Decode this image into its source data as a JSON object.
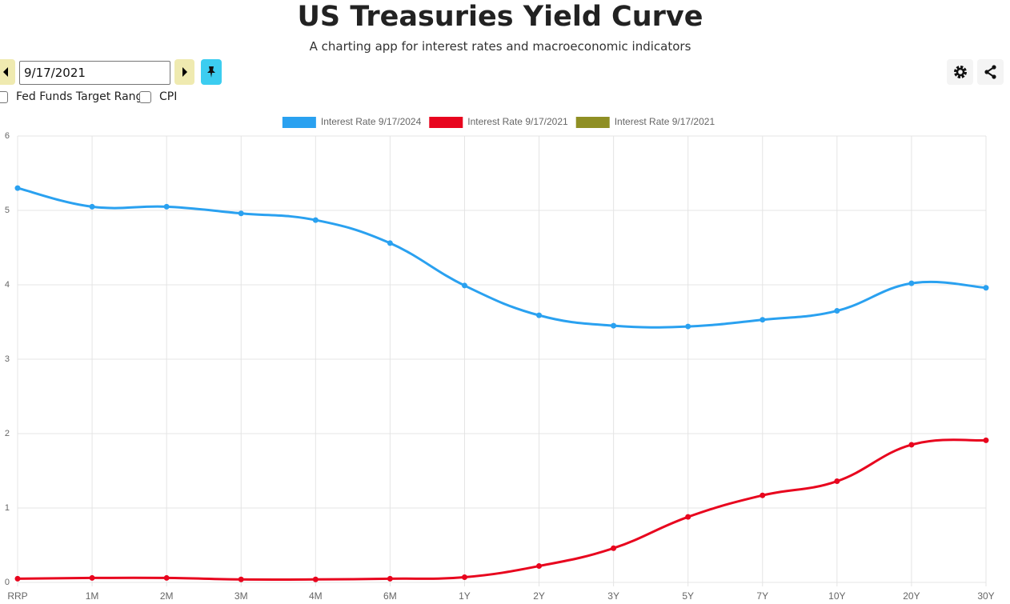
{
  "header": {
    "title": "US Treasuries Yield Curve",
    "subtitle": "A charting app for interest rates and macroeconomic indicators"
  },
  "controls": {
    "date": "9/17/2021",
    "checkboxes": [
      "Fed Funds Target Range",
      "CPI"
    ]
  },
  "chart_data": {
    "type": "line",
    "categories": [
      "RRP",
      "1M",
      "2M",
      "3M",
      "4M",
      "6M",
      "1Y",
      "2Y",
      "3Y",
      "5Y",
      "7Y",
      "10Y",
      "20Y",
      "30Y"
    ],
    "series": [
      {
        "name": "Interest Rate 9/17/2024",
        "color": "#2aa1f0",
        "values": [
          5.3,
          5.05,
          5.05,
          4.96,
          4.87,
          4.56,
          3.99,
          3.59,
          3.45,
          3.44,
          3.53,
          3.65,
          4.02,
          3.96
        ]
      },
      {
        "name": "Interest Rate 9/17/2021",
        "color": "#e8051e",
        "values": [
          0.05,
          0.06,
          0.06,
          0.04,
          0.04,
          0.05,
          0.07,
          0.22,
          0.46,
          0.88,
          1.17,
          1.36,
          1.85,
          1.91
        ]
      },
      {
        "name": "Interest Rate 9/17/2021",
        "color": "#8f8f24",
        "values": [
          null,
          null,
          null,
          null,
          null,
          null,
          null,
          null,
          null,
          null,
          null,
          null,
          null,
          null
        ]
      }
    ],
    "ylim": [
      0,
      6
    ],
    "yticks": [
      0,
      1,
      2,
      3,
      4,
      5,
      6
    ],
    "grid": true,
    "legend": "top"
  }
}
